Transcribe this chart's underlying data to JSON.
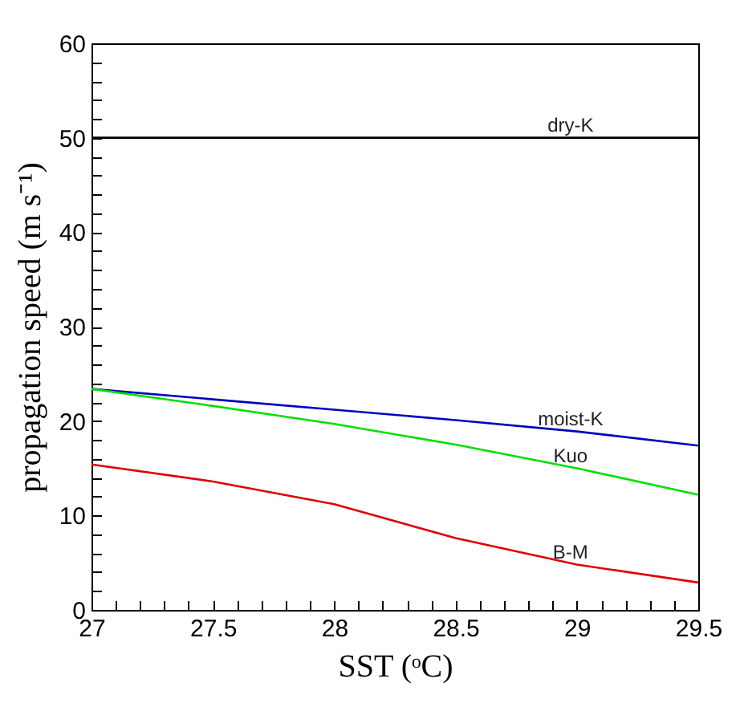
{
  "chart_data": {
    "type": "line",
    "xlabel": "SST (ᵒC)",
    "ylabel": "propagation speed (m s⁻¹)",
    "x": [
      27,
      27.5,
      28,
      28.5,
      29,
      29.5
    ],
    "series": [
      {
        "name": "dry-K",
        "color": "#000000",
        "values": [
          50,
          50,
          50,
          50,
          50,
          50
        ]
      },
      {
        "name": "moist-K",
        "color": "#0000c0",
        "values": [
          23.4,
          22.3,
          21.2,
          20.1,
          18.9,
          17.4
        ]
      },
      {
        "name": "Kuo",
        "color": "#00e000",
        "values": [
          23.4,
          21.6,
          19.7,
          17.5,
          15.0,
          12.2
        ]
      },
      {
        "name": "B-M",
        "color": "#e00000",
        "values": [
          15.4,
          13.6,
          11.2,
          7.6,
          4.8,
          2.9
        ]
      }
    ],
    "xlim": [
      27,
      29.5
    ],
    "ylim": [
      0,
      60
    ],
    "xticks": [
      27,
      {
        "value": 27.1,
        "label": null
      },
      {
        "value": 27.2,
        "label": null
      },
      {
        "value": 27.3,
        "label": null
      },
      {
        "value": 27.4,
        "label": null
      },
      27.5,
      {
        "value": 27.6,
        "label": null
      },
      {
        "value": 27.7,
        "label": null
      },
      {
        "value": 27.8,
        "label": null
      },
      {
        "value": 27.9,
        "label": null
      },
      28,
      {
        "value": 28.1,
        "label": null
      },
      {
        "value": 28.2,
        "label": null
      },
      {
        "value": 28.3,
        "label": null
      },
      {
        "value": 28.4,
        "label": null
      },
      28.5,
      {
        "value": 28.6,
        "label": null
      },
      {
        "value": 28.7,
        "label": null
      },
      {
        "value": 28.8,
        "label": null
      },
      {
        "value": 28.9,
        "label": null
      },
      29,
      {
        "value": 29.1,
        "label": null
      },
      {
        "value": 29.2,
        "label": null
      },
      {
        "value": 29.3,
        "label": null
      },
      {
        "value": 29.4,
        "label": null
      },
      29.5
    ],
    "yticks": [
      0,
      {
        "value": 2,
        "label": null
      },
      {
        "value": 4,
        "label": null
      },
      {
        "value": 6,
        "label": null
      },
      {
        "value": 8,
        "label": null
      },
      10,
      {
        "value": 12,
        "label": null
      },
      {
        "value": 14,
        "label": null
      },
      {
        "value": 16,
        "label": null
      },
      {
        "value": 18,
        "label": null
      },
      20,
      {
        "value": 22,
        "label": null
      },
      {
        "value": 24,
        "label": null
      },
      {
        "value": 26,
        "label": null
      },
      {
        "value": 28,
        "label": null
      },
      30,
      {
        "value": 32,
        "label": null
      },
      {
        "value": 34,
        "label": null
      },
      {
        "value": 36,
        "label": null
      },
      {
        "value": 38,
        "label": null
      },
      40,
      {
        "value": 42,
        "label": null
      },
      {
        "value": 44,
        "label": null
      },
      {
        "value": 46,
        "label": null
      },
      {
        "value": 48,
        "label": null
      },
      50,
      {
        "value": 52,
        "label": null
      },
      {
        "value": 54,
        "label": null
      },
      {
        "value": 56,
        "label": null
      },
      {
        "value": 58,
        "label": null
      },
      60
    ],
    "grid": false,
    "legend": false,
    "marker": "none",
    "line_style": "solid"
  }
}
